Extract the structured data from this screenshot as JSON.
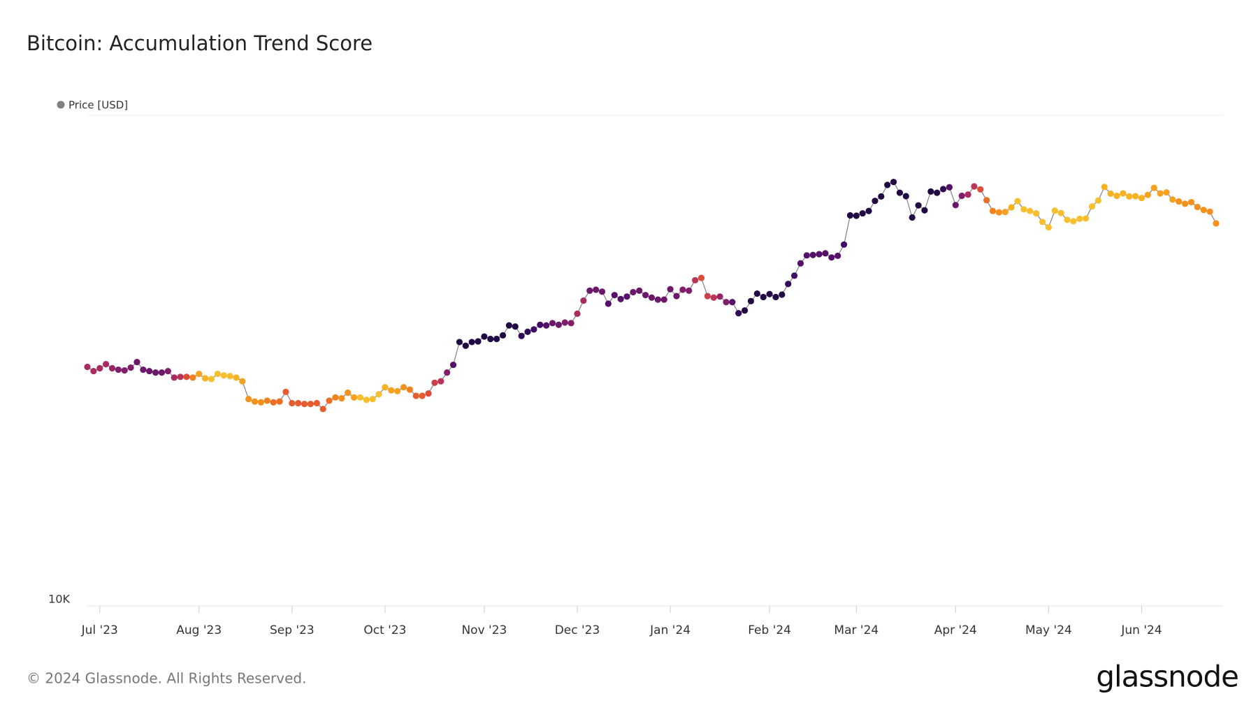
{
  "chart_data": {
    "type": "scatter-line",
    "title": "Bitcoin: Accumulation Trend Score",
    "series": [
      {
        "name": "Price [USD]",
        "color": "#808080",
        "values": [
          30700,
          30100,
          30500,
          31100,
          30500,
          30300,
          30200,
          30600,
          31400,
          30300,
          30100,
          29900,
          29900,
          30100,
          29200,
          29300,
          29300,
          29200,
          29700,
          29100,
          29000,
          29700,
          29500,
          29400,
          29200,
          28700,
          26400,
          26100,
          26000,
          26200,
          26000,
          26100,
          27300,
          25900,
          25900,
          25800,
          25800,
          25900,
          25200,
          26200,
          26600,
          26500,
          27200,
          26600,
          26600,
          26300,
          26400,
          27000,
          27900,
          27500,
          27400,
          27900,
          27600,
          26800,
          26800,
          27100,
          28500,
          28700,
          29900,
          31000,
          34500,
          33900,
          34500,
          34600,
          35400,
          35000,
          35000,
          35600,
          37300,
          37100,
          35500,
          36200,
          36600,
          37400,
          37300,
          37700,
          37400,
          37800,
          37700,
          39400,
          41900,
          43900,
          44100,
          43700,
          41300,
          43000,
          42200,
          42700,
          43600,
          43900,
          43000,
          42500,
          42100,
          42100,
          44200,
          42800,
          44100,
          43900,
          46100,
          46600,
          42800,
          42500,
          42700,
          41600,
          41600,
          39500,
          40000,
          41800,
          43300,
          42600,
          43200,
          42600,
          43100,
          45300,
          47100,
          49900,
          51800,
          51900,
          52100,
          52300,
          51300,
          51700,
          54500,
          62500,
          62400,
          63100,
          63800,
          66900,
          68300,
          72100,
          73100,
          69500,
          68400,
          61900,
          65500,
          64000,
          69900,
          69500,
          70700,
          71300,
          65600,
          68500,
          68900,
          71600,
          70600,
          67100,
          63800,
          63400,
          63500,
          64900,
          66800,
          64300,
          63800,
          63100,
          60600,
          59100,
          63900,
          63200,
          61200,
          60800,
          61500,
          61600,
          65200,
          67000,
          71400,
          69200,
          68500,
          69300,
          68300,
          68400,
          67800,
          68800,
          71100,
          69300,
          69600,
          67300,
          66700,
          66000,
          66500,
          65000,
          64100,
          63600,
          60200
        ],
        "color_values": [
          0.4,
          0.4,
          0.4,
          0.4,
          0.35,
          0.3,
          0.3,
          0.3,
          0.25,
          0.25,
          0.25,
          0.25,
          0.25,
          0.3,
          0.4,
          0.45,
          0.55,
          0.7,
          0.8,
          0.85,
          0.9,
          0.9,
          0.9,
          0.9,
          0.85,
          0.8,
          0.75,
          0.75,
          0.75,
          0.7,
          0.65,
          0.65,
          0.6,
          0.6,
          0.6,
          0.6,
          0.6,
          0.6,
          0.6,
          0.65,
          0.7,
          0.75,
          0.75,
          0.8,
          0.9,
          0.9,
          0.9,
          0.9,
          0.85,
          0.8,
          0.8,
          0.75,
          0.7,
          0.6,
          0.6,
          0.55,
          0.5,
          0.45,
          0.3,
          0.2,
          0.05,
          0.05,
          0.05,
          0.05,
          0.05,
          0.05,
          0.05,
          0.05,
          0.05,
          0.05,
          0.1,
          0.1,
          0.15,
          0.15,
          0.2,
          0.25,
          0.25,
          0.3,
          0.3,
          0.4,
          0.4,
          0.25,
          0.25,
          0.25,
          0.2,
          0.2,
          0.2,
          0.2,
          0.25,
          0.25,
          0.25,
          0.25,
          0.25,
          0.25,
          0.25,
          0.25,
          0.3,
          0.3,
          0.45,
          0.55,
          0.5,
          0.45,
          0.35,
          0.3,
          0.2,
          0.1,
          0.05,
          0.05,
          0.05,
          0.05,
          0.05,
          0.05,
          0.05,
          0.1,
          0.15,
          0.2,
          0.2,
          0.2,
          0.2,
          0.2,
          0.2,
          0.2,
          0.15,
          0.05,
          0.05,
          0.05,
          0.05,
          0.05,
          0.05,
          0.05,
          0.05,
          0.05,
          0.05,
          0.05,
          0.05,
          0.05,
          0.05,
          0.05,
          0.1,
          0.2,
          0.25,
          0.3,
          0.4,
          0.45,
          0.55,
          0.65,
          0.7,
          0.75,
          0.8,
          0.85,
          0.9,
          0.9,
          0.9,
          0.9,
          0.9,
          0.9,
          0.9,
          0.9,
          0.9,
          0.9,
          0.9,
          0.9,
          0.9,
          0.9,
          0.85,
          0.85,
          0.85,
          0.85,
          0.85,
          0.85,
          0.85,
          0.8,
          0.8,
          0.8,
          0.8,
          0.8,
          0.75,
          0.75,
          0.75,
          0.75,
          0.75,
          0.75,
          0.75
        ]
      }
    ],
    "categories": [
      null,
      null,
      "Jul '23",
      null,
      null,
      null,
      null,
      null,
      null,
      null,
      null,
      null,
      null,
      null,
      null,
      null,
      null,
      null,
      "Aug '23",
      null,
      null,
      null,
      null,
      null,
      null,
      null,
      null,
      null,
      null,
      null,
      null,
      null,
      null,
      "Sep '23",
      null,
      null,
      null,
      null,
      null,
      null,
      null,
      null,
      null,
      null,
      null,
      null,
      null,
      null,
      "Oct '23",
      null,
      null,
      null,
      null,
      null,
      null,
      null,
      null,
      null,
      null,
      null,
      null,
      null,
      null,
      null,
      "Nov '23",
      null,
      null,
      null,
      null,
      null,
      null,
      null,
      null,
      null,
      null,
      null,
      null,
      null,
      null,
      "Dec '23",
      null,
      null,
      null,
      null,
      null,
      null,
      null,
      null,
      null,
      null,
      null,
      null,
      null,
      null,
      "Jan '24",
      null,
      null,
      null,
      null,
      null,
      null,
      null,
      null,
      null,
      null,
      null,
      null,
      null,
      null,
      null,
      "Feb '24",
      null,
      null,
      null,
      null,
      null,
      null,
      null,
      null,
      null,
      null,
      null,
      null,
      null,
      "Mar '24",
      null,
      null,
      null,
      null,
      null,
      null,
      null,
      null,
      null,
      null,
      null,
      null,
      null,
      null,
      null,
      "Apr '24",
      null,
      null,
      null,
      null,
      null,
      null,
      null,
      null,
      null,
      null,
      null,
      null,
      null,
      null,
      "May '24",
      null,
      null,
      null,
      null,
      null,
      null,
      null,
      null,
      null,
      null,
      null,
      null,
      null,
      null,
      "Jun '24",
      null,
      null,
      null,
      null,
      null,
      null,
      null,
      null,
      null,
      null,
      null,
      null
    ],
    "colorscale": [
      "#120a30",
      "#3d0a66",
      "#7a1c6d",
      "#b52f5c",
      "#e35133",
      "#f5841a",
      "#f8b420",
      "#f4da4f"
    ],
    "ylim": [
      10000,
      100000
    ],
    "yticks": [
      {
        "value": 10000,
        "label": "10K"
      }
    ],
    "log_y": true,
    "grid": true,
    "footer": "© 2024 Glassnode. All Rights Reserved.",
    "brand": "glassnode"
  }
}
